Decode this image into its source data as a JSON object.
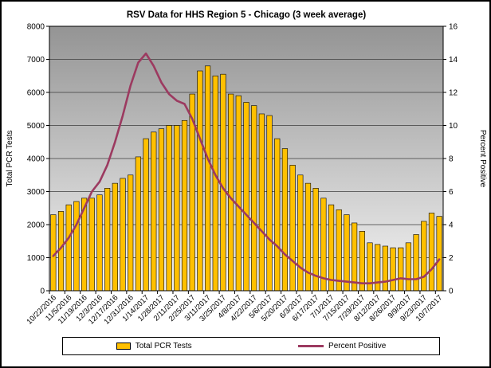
{
  "chart_data": {
    "type": "bar",
    "combo": "bar+line",
    "title": "RSV Data for HHS Region 5 - Chicago (3 week average)",
    "grid": true,
    "legend_position": "bottom",
    "plot_bg_top": "#949494",
    "plot_bg_bottom": "#f4f4f4",
    "gridline_color": "#3c3c3c",
    "left_axis": {
      "label": "Total PCR Tests",
      "min": 0,
      "max": 8000,
      "step": 1000
    },
    "right_axis": {
      "label": "Percent Positive",
      "min": 0,
      "max": 16,
      "step": 2
    },
    "x_tick_labels": [
      "10/22/2016",
      "11/5/2016",
      "11/19/2016",
      "12/3/2016",
      "12/17/2016",
      "12/31/2016",
      "1/14/2017",
      "1/28/2017",
      "2/11/2017",
      "2/25/2017",
      "3/11/2017",
      "3/25/2017",
      "4/8/2017",
      "4/22/2017",
      "5/6/2017",
      "5/20/2017",
      "6/3/2017",
      "6/17/2017",
      "7/1/2017",
      "7/15/2017",
      "7/29/2017",
      "8/12/2017",
      "8/26/2017",
      "9/9/2017",
      "9/23/2017",
      "10/7/2017"
    ],
    "label_every_n_bars": 2,
    "series": [
      {
        "name": "Total PCR Tests",
        "type": "bar",
        "axis": "left",
        "color": "#FFC000",
        "values": [
          2300,
          2400,
          2600,
          2700,
          2800,
          2800,
          2900,
          3100,
          3250,
          3400,
          3500,
          4050,
          4600,
          4800,
          4900,
          5000,
          5000,
          5150,
          5950,
          6650,
          6800,
          6500,
          6550,
          5950,
          5900,
          5700,
          5600,
          5350,
          5300,
          4600,
          4300,
          3800,
          3500,
          3250,
          3100,
          2800,
          2600,
          2450,
          2300,
          2050,
          1800,
          1450,
          1400,
          1350,
          1300,
          1300,
          1450,
          1700,
          2100,
          2350,
          2250
        ]
      },
      {
        "name": "Percent Positive",
        "type": "line",
        "axis": "right",
        "color": "#9C3A60",
        "values": [
          2.1,
          2.6,
          3.2,
          4.0,
          5.0,
          6.0,
          6.6,
          7.6,
          9.0,
          10.6,
          12.4,
          13.8,
          14.35,
          13.6,
          12.6,
          11.9,
          11.5,
          11.3,
          10.4,
          9.2,
          8.0,
          7.0,
          6.2,
          5.6,
          5.1,
          4.6,
          4.1,
          3.6,
          3.1,
          2.7,
          2.2,
          1.8,
          1.4,
          1.1,
          0.9,
          0.75,
          0.65,
          0.6,
          0.55,
          0.5,
          0.45,
          0.45,
          0.5,
          0.55,
          0.65,
          0.75,
          0.7,
          0.7,
          0.85,
          1.3,
          1.9
        ]
      }
    ]
  }
}
